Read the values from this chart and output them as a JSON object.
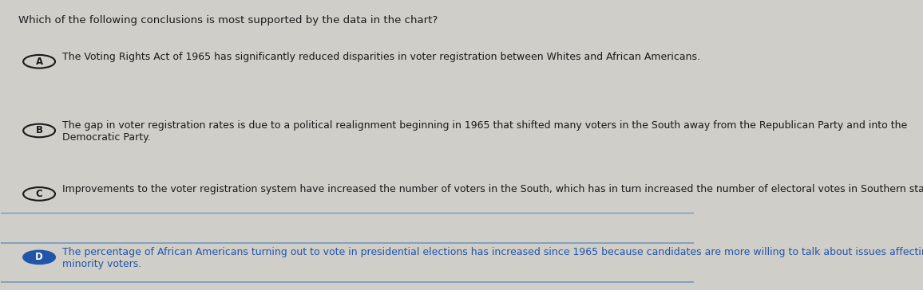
{
  "question": "Which of the following conclusions is most supported by the data in the chart?",
  "options": [
    {
      "label": "A",
      "text": "The Voting Rights Act of 1965 has significantly reduced disparities in voter registration between Whites and African Americans.",
      "selected": false
    },
    {
      "label": "B",
      "text": "The gap in voter registration rates is due to a political realignment beginning in 1965 that shifted many voters in the South away from the Republican Party and into the\nDemocratic Party.",
      "selected": false
    },
    {
      "label": "C",
      "text": "Improvements to the voter registration system have increased the number of voters in the South, which has in turn increased the number of electoral votes in Southern states.",
      "selected": false
    },
    {
      "label": "D",
      "text": "The percentage of African Americans turning out to vote in presidential elections has increased since 1965 because candidates are more willing to talk about issues affecting\nminority voters.",
      "selected": true
    }
  ],
  "bg_color": "#d0cec8",
  "text_color": "#1a1a1a",
  "selected_color": "#2255aa",
  "line_color": "#7799bb",
  "question_fontsize": 9.5,
  "option_fontsize": 9.0,
  "label_fontsize": 8.5
}
